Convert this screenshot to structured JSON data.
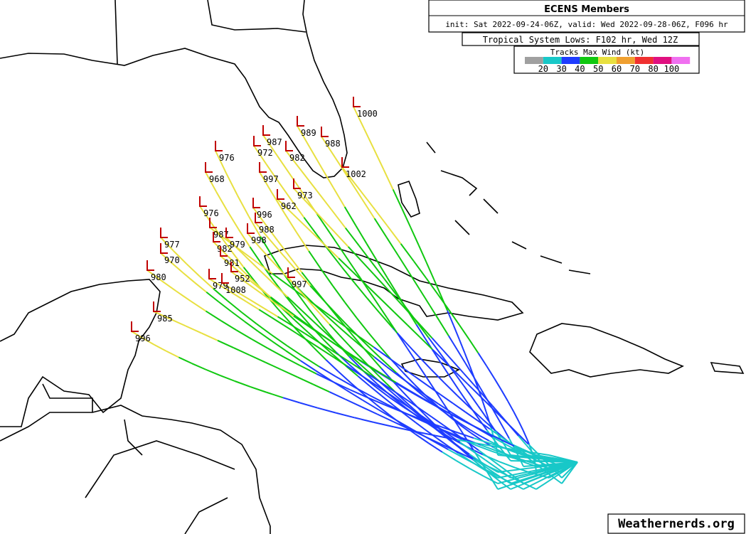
{
  "header": {
    "title": "ECENS Members",
    "subtitle": "init: Sat 2022-09-24-06Z, valid: Wed 2022-09-28-06Z, F096 hr"
  },
  "lows": {
    "title": "Tropical System Lows: F102 hr, Wed 12Z",
    "labels": [
      "1000",
      "989",
      "988",
      "1002",
      "976",
      "972",
      "987",
      "982",
      "968",
      "997",
      "973",
      "962",
      "976",
      "996",
      "988",
      "987",
      "998",
      "977",
      "982",
      "979",
      "970",
      "981",
      "980",
      "952",
      "997",
      "979",
      "1008",
      "985",
      "996"
    ]
  },
  "legend": {
    "title": "Tracks Max Wind (kt)",
    "colors": [
      "#a0a0a0",
      "#18c8c8",
      "#1e3cff",
      "#10c810",
      "#e8e040",
      "#f0a030",
      "#f03030",
      "#e01080",
      "#f070f0"
    ],
    "labels": [
      "20",
      "30",
      "40",
      "50",
      "60",
      "70",
      "80",
      "100"
    ]
  },
  "credit": "Weathernerds.org"
}
